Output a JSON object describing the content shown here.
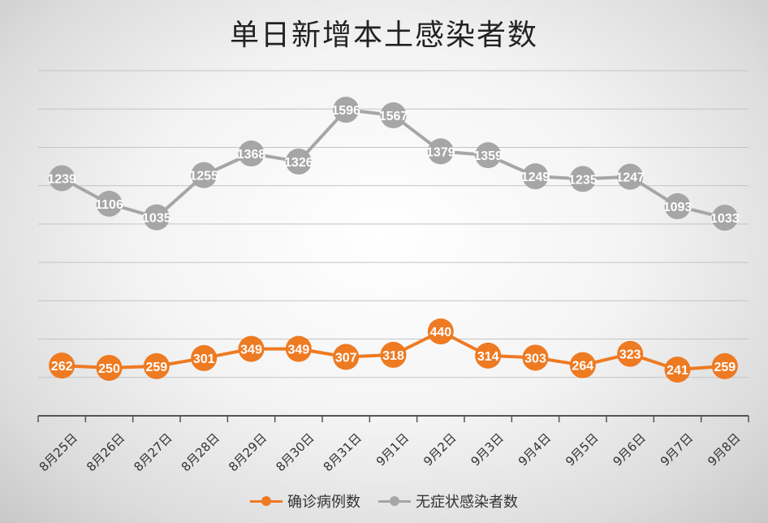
{
  "chart_data": {
    "type": "line",
    "title": "单日新增本土感染者数",
    "xlabel": "",
    "ylabel": "",
    "categories": [
      "8月25日",
      "8月26日",
      "8月27日",
      "8月28日",
      "8月29日",
      "8月30日",
      "8月31日",
      "9月1日",
      "9月2日",
      "9月3日",
      "9月4日",
      "9月5日",
      "9月6日",
      "9月7日",
      "9月8日"
    ],
    "series": [
      {
        "name": "确诊病例数",
        "color": "#ee7a22",
        "values": [
          262,
          250,
          259,
          301,
          349,
          349,
          307,
          318,
          440,
          314,
          303,
          264,
          323,
          241,
          259
        ]
      },
      {
        "name": "无症状感染者数",
        "color": "#a6a6a6",
        "values": [
          1239,
          1106,
          1035,
          1255,
          1368,
          1326,
          1596,
          1567,
          1379,
          1359,
          1249,
          1235,
          1247,
          1093,
          1033
        ]
      }
    ],
    "ylim": [
      0,
      1800
    ],
    "grid": true,
    "legend": "bottom"
  }
}
